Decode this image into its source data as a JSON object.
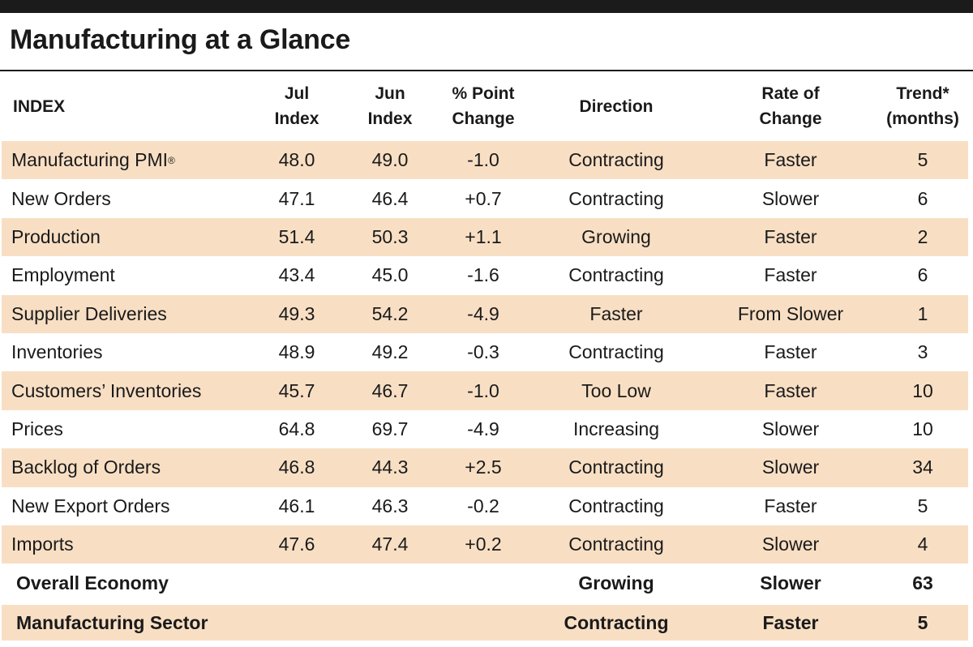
{
  "title": "Manufacturing at a Glance",
  "header": {
    "index": "INDEX",
    "jul_line1": "Jul",
    "jul_line2": "Index",
    "jun_line1": "Jun",
    "jun_line2": "Index",
    "pt_line1": "% Point",
    "pt_line2": "Change",
    "direction": "Direction",
    "rate_line1": "Rate of",
    "rate_line2": "Change",
    "trend_line1": "Trend*",
    "trend_line2": "(months)"
  },
  "rows": [
    {
      "name": "Manufacturing PMI",
      "name_sup": "®",
      "jul": "48.0",
      "jun": "49.0",
      "change": "-1.0",
      "direction": "Contracting",
      "rate": "Faster",
      "trend": "5"
    },
    {
      "name": "New Orders",
      "jul": "47.1",
      "jun": "46.4",
      "change": "+0.7",
      "direction": "Contracting",
      "rate": "Slower",
      "trend": "6"
    },
    {
      "name": "Production",
      "jul": "51.4",
      "jun": "50.3",
      "change": "+1.1",
      "direction": "Growing",
      "rate": "Faster",
      "trend": "2"
    },
    {
      "name": "Employment",
      "jul": "43.4",
      "jun": "45.0",
      "change": "-1.6",
      "direction": "Contracting",
      "rate": "Faster",
      "trend": "6"
    },
    {
      "name": "Supplier Deliveries",
      "jul": "49.3",
      "jun": "54.2",
      "change": "-4.9",
      "direction": "Faster",
      "rate": "From Slower",
      "trend": "1"
    },
    {
      "name": "Inventories",
      "jul": "48.9",
      "jun": "49.2",
      "change": "-0.3",
      "direction": "Contracting",
      "rate": "Faster",
      "trend": "3"
    },
    {
      "name": "Customers’ Inventories",
      "jul": "45.7",
      "jun": "46.7",
      "change": "-1.0",
      "direction": "Too Low",
      "rate": "Faster",
      "trend": "10"
    },
    {
      "name": "Prices",
      "jul": "64.8",
      "jun": "69.7",
      "change": "-4.9",
      "direction": "Increasing",
      "rate": "Slower",
      "trend": "10"
    },
    {
      "name": "Backlog of Orders",
      "jul": "46.8",
      "jun": "44.3",
      "change": "+2.5",
      "direction": "Contracting",
      "rate": "Slower",
      "trend": "34"
    },
    {
      "name": "New Export Orders",
      "jul": "46.1",
      "jun": "46.3",
      "change": "-0.2",
      "direction": "Contracting",
      "rate": "Faster",
      "trend": "5"
    },
    {
      "name": "Imports",
      "jul": "47.6",
      "jun": "47.4",
      "change": "+0.2",
      "direction": "Contracting",
      "rate": "Slower",
      "trend": "4"
    }
  ],
  "summary": [
    {
      "name": "Overall Economy",
      "direction": "Growing",
      "rate": "Slower",
      "trend": "63"
    },
    {
      "name": "Manufacturing Sector",
      "direction": "Contracting",
      "rate": "Faster",
      "trend": "5"
    }
  ],
  "colors": {
    "shade": "#f8dfc4",
    "rule": "#1b1b1b",
    "text": "#1a1a1a"
  }
}
